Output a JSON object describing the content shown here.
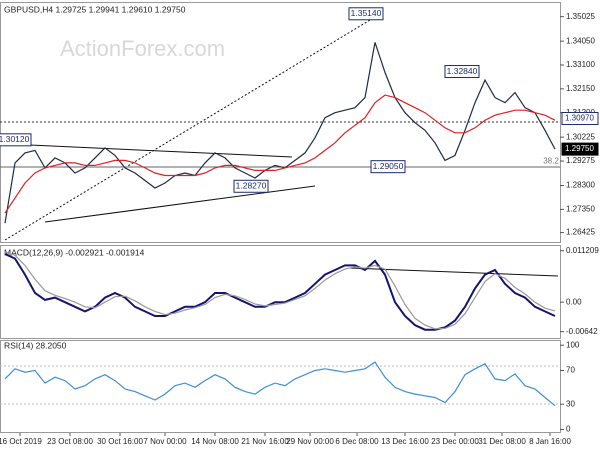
{
  "chart_data": [
    {
      "type": "line",
      "title": "GBPUSD,H4  1.29725 1.29941 1.29610 1.29750",
      "watermark": "ActionForex.com",
      "x": [
        0,
        1,
        2,
        3,
        4,
        5,
        6,
        7,
        8,
        9,
        10,
        11,
        12,
        13,
        14,
        15,
        16,
        17,
        18,
        19,
        20,
        21,
        22,
        23,
        24,
        25,
        26,
        27,
        28,
        29,
        30,
        31,
        32,
        33,
        34,
        35,
        36,
        37,
        38,
        39,
        40,
        41,
        42,
        43,
        44,
        45,
        46,
        47,
        48,
        49,
        50,
        51,
        52,
        53,
        54,
        55
      ],
      "xlim": [
        -0.5,
        55.5
      ],
      "ylim": [
        1.2605,
        1.3549
      ],
      "yticks": [
        1.35025,
        {
          "value": 1.3405,
          "label": "1.34050"
        },
        {
          "value": 1.331,
          "label": "1.33100"
        },
        {
          "value": 1.3215,
          "label": "1.32150"
        },
        {
          "value": 1.312,
          "label": "1.31200"
        },
        1.30225,
        1.29275,
        {
          "value": 1.283,
          "label": "1.28300"
        },
        {
          "value": 1.2735,
          "label": "1.27350"
        },
        1.26425
      ],
      "series": [
        {
          "name": "Close",
          "color": "#1f2a44",
          "values": [
            1.268,
            1.292,
            1.296,
            1.297,
            1.29,
            1.294,
            1.292,
            1.288,
            1.29,
            1.294,
            1.298,
            1.295,
            1.29,
            1.288,
            1.285,
            1.282,
            1.284,
            1.287,
            1.288,
            1.287,
            1.292,
            1.296,
            1.294,
            1.29,
            1.288,
            1.286,
            1.289,
            1.291,
            1.29,
            1.293,
            1.296,
            1.302,
            1.31,
            1.312,
            1.313,
            1.314,
            1.318,
            1.34,
            1.328,
            1.318,
            1.312,
            1.308,
            1.305,
            1.3,
            1.293,
            1.295,
            1.305,
            1.316,
            1.325,
            1.318,
            1.316,
            1.32,
            1.314,
            1.312,
            1.305,
            1.2975
          ]
        },
        {
          "name": "MA",
          "color": "#e02020",
          "values": [
            1.272,
            1.278,
            1.284,
            1.288,
            1.29,
            1.291,
            1.292,
            1.292,
            1.291,
            1.291,
            1.292,
            1.293,
            1.293,
            1.292,
            1.29,
            1.288,
            1.287,
            1.287,
            1.287,
            1.287,
            1.288,
            1.29,
            1.291,
            1.291,
            1.29,
            1.289,
            1.289,
            1.289,
            1.29,
            1.291,
            1.292,
            1.294,
            1.297,
            1.3,
            1.304,
            1.307,
            1.31,
            1.316,
            1.319,
            1.318,
            1.316,
            1.314,
            1.312,
            1.309,
            1.306,
            1.304,
            1.304,
            1.306,
            1.309,
            1.311,
            1.312,
            1.313,
            1.313,
            1.312,
            1.311,
            1.309
          ]
        }
      ],
      "annotations": [
        {
          "x": 36.1,
          "y": 1.3514,
          "label": "1.35140"
        },
        {
          "x": 45.7,
          "y": 1.3284,
          "label": "1.32840"
        },
        {
          "x": 0.9,
          "y": 1.3012,
          "label": "1.30120"
        },
        {
          "x": 38.3,
          "y": 1.2905,
          "label": "1.29050"
        },
        {
          "x": 24.6,
          "y": 1.2827,
          "label": "1.28270"
        },
        {
          "x": 54.6,
          "y": 1.2927,
          "label": "38.2"
        }
      ],
      "price_markers": [
        {
          "value": 1.3097,
          "label": "1.30970",
          "color": "#ffffff"
        },
        {
          "value": 1.2975,
          "label": "1.29750",
          "color": "#000000"
        }
      ]
    },
    {
      "type": "line",
      "title": "MACD(12,26,9) -0.002921 -0.001914",
      "ylim": [
        -0.0078,
        0.0118
      ],
      "yticks": [
        0.011209,
        {
          "value": 0,
          "label": "0.00"
        },
        -0.00642
      ],
      "series": [
        {
          "name": "MACD",
          "color": "#14146e",
          "values": [
            0.0105,
            0.0095,
            0.006,
            0.002,
            0.0005,
            0.001,
            0,
            -0.001,
            -0.002,
            -0.001,
            0.001,
            0.002,
            0.001,
            -0.001,
            -0.002,
            -0.003,
            -0.003,
            -0.002,
            -0.001,
            -0.001,
            0,
            0.002,
            0.002,
            0.001,
            0,
            -0.001,
            -0.001,
            0,
            0,
            0.001,
            0.002,
            0.004,
            0.006,
            0.007,
            0.008,
            0.008,
            0.007,
            0.009,
            0.006,
            0,
            -0.003,
            -0.005,
            -0.006,
            -0.006,
            -0.0055,
            -0.004,
            -0.001,
            0.003,
            0.006,
            0.007,
            0.004,
            0.002,
            0.001,
            -0.001,
            -0.002,
            -0.003
          ]
        },
        {
          "name": "Signal",
          "color": "#9a9a9a",
          "values": [
            0.011,
            0.0102,
            0.008,
            0.005,
            0.0025,
            0.0015,
            0.0008,
            0,
            -0.001,
            -0.0012,
            0,
            0.0012,
            0.0013,
            0.0003,
            -0.001,
            -0.002,
            -0.0027,
            -0.0024,
            -0.0017,
            -0.0012,
            -0.0005,
            0.001,
            0.0017,
            0.0014,
            0.0006,
            -0.0004,
            -0.0008,
            -0.0005,
            -0.0002,
            0.0006,
            0.0014,
            0.003,
            0.0048,
            0.0062,
            0.0072,
            0.0077,
            0.0074,
            0.008,
            0.0072,
            0.0035,
            -0.0005,
            -0.0035,
            -0.005,
            -0.0058,
            -0.0057,
            -0.0048,
            -0.0025,
            0.001,
            0.0045,
            0.0062,
            0.0052,
            0.0032,
            0.0018,
            0,
            -0.0013,
            -0.0019
          ]
        }
      ]
    },
    {
      "type": "line",
      "title": "RSI(14) 28.2050",
      "ylim": [
        -3,
        105
      ],
      "yticks": [
        100,
        70,
        30,
        0
      ],
      "xticks": [
        {
          "value": 1.5,
          "label": "16 Oct 2019"
        },
        {
          "value": 6.5,
          "label": "23 Oct 08:00"
        },
        {
          "value": 11.5,
          "label": "30 Oct 16:00"
        },
        {
          "value": 16,
          "label": "7 Nov 00:00"
        },
        {
          "value": 21,
          "label": "14 Nov 08:00"
        },
        {
          "value": 26,
          "label": "21 Nov 16:00"
        },
        {
          "value": 30.5,
          "label": "29 Nov 00:00"
        },
        {
          "value": 35.2,
          "label": "6 Dec 08:00"
        },
        {
          "value": 40,
          "label": "13 Dec 16:00"
        },
        {
          "value": 45,
          "label": "23 Dec 00:00"
        },
        {
          "value": 49.7,
          "label": "31 Dec 08:00"
        },
        {
          "value": 54.5,
          "label": "8 Jan 16:00"
        }
      ],
      "series": [
        {
          "name": "RSI",
          "color": "#3d8fd6",
          "values": [
            60,
            72,
            68,
            70,
            55,
            62,
            58,
            48,
            52,
            60,
            65,
            58,
            48,
            45,
            40,
            35,
            42,
            52,
            55,
            50,
            58,
            65,
            60,
            50,
            45,
            42,
            50,
            55,
            52,
            60,
            65,
            70,
            72,
            70,
            68,
            70,
            72,
            80,
            62,
            50,
            45,
            42,
            40,
            38,
            32,
            45,
            65,
            72,
            78,
            60,
            58,
            66,
            52,
            48,
            38,
            28.205
          ]
        }
      ]
    }
  ]
}
